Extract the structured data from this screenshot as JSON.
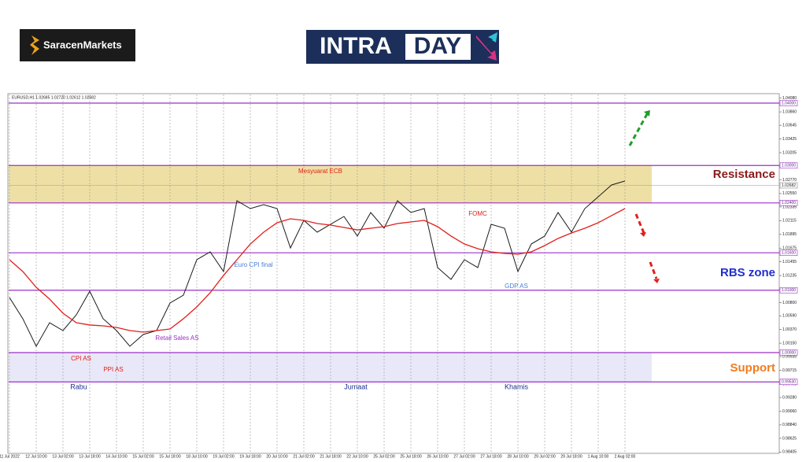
{
  "brand": "SaracenMarkets",
  "banner": {
    "left": "INTRA",
    "right": "DAY"
  },
  "chart_data": {
    "type": "line",
    "header": "EURUSD,H1  1.02685 1.02720 1.02612 1.02682",
    "categories": [
      "11 Jul 2022",
      null,
      "12 Jul 10:00",
      null,
      "13 Jul 02:00",
      null,
      "13 Jul 18:00",
      null,
      "14 Jul 10:00",
      null,
      "15 Jul 02:00",
      null,
      "15 Jul 18:00",
      null,
      "18 Jul 10:00",
      null,
      "19 Jul 02:00",
      null,
      "19 Jul 18:00",
      null,
      "20 Jul 10:00",
      null,
      "21 Jul 02:00",
      null,
      "21 Jul 18:00",
      null,
      "22 Jul 10:00",
      null,
      "25 Jul 02:00",
      null,
      "25 Jul 18:00",
      null,
      "26 Jul 10:00",
      null,
      "27 Jul 02:00",
      null,
      "27 Jul 18:00",
      null,
      "28 Jul 10:00",
      null,
      "29 Jul 02:00",
      null,
      "29 Jul 18:00",
      null,
      "1 Aug 10:00",
      null,
      "2 Aug 02:00"
    ],
    "series": [
      {
        "name": "EURUSD",
        "color": "#1a1a1a",
        "values": [
          1.00883,
          1.00543,
          1.00101,
          1.00479,
          1.00353,
          1.00606,
          1.00984,
          1.00543,
          1.00353,
          1.00101,
          1.0029,
          1.00353,
          1.00795,
          1.00921,
          1.01489,
          1.01615,
          1.013,
          1.02435,
          1.02309,
          1.02372,
          1.02309,
          1.01678,
          1.0212,
          1.01931,
          1.02057,
          1.02183,
          1.01868,
          1.02246,
          1.01994,
          1.02435,
          1.02246,
          1.02309,
          1.01363,
          1.01174,
          1.01489,
          1.01363,
          1.02057,
          1.01994,
          1.013,
          1.01741,
          1.01868,
          1.02246,
          1.01931,
          1.02309,
          1.02498,
          1.02688,
          1.02751
        ]
      },
      {
        "name": "MA",
        "color": "#e0201b",
        "values": [
          1.01489,
          1.013,
          1.01047,
          1.00858,
          1.00631,
          1.00479,
          1.00442,
          1.00429,
          1.00404,
          1.00353,
          1.00328,
          1.00353,
          1.00378,
          1.00543,
          1.00732,
          1.00959,
          1.01237,
          1.01489,
          1.01741,
          1.01931,
          1.02082,
          1.02145,
          1.0212,
          1.02069,
          1.02044,
          1.02006,
          1.01968,
          1.01994,
          1.02019,
          1.02069,
          1.02095,
          1.0212,
          1.02019,
          1.01868,
          1.01741,
          1.01666,
          1.01615,
          1.0159,
          1.01577,
          1.01615,
          1.01716,
          1.0183,
          1.01918,
          1.01994,
          1.02082,
          1.02196,
          1.02309
        ]
      }
    ],
    "ylim": [
      0.98397,
      1.04139
    ],
    "yticks": [
      {
        "value": 1.0408,
        "label": "1.04080"
      },
      {
        "value": 1.0386,
        "label": "1.03860"
      },
      {
        "value": 1.03645,
        "label": "1.03645"
      },
      {
        "value": 1.03425,
        "label": "1.03425"
      },
      {
        "value": 1.03205,
        "label": "1.03205"
      },
      {
        "value": 1.0299,
        "label": "1.02990"
      },
      {
        "value": 1.0277,
        "label": "1.02770"
      },
      {
        "value": 1.0255,
        "label": "1.02550"
      },
      {
        "value": 1.02335,
        "label": "1.02335"
      },
      {
        "value": 1.02115,
        "label": "1.02115"
      },
      {
        "value": 1.01895,
        "label": "1.01895"
      },
      {
        "value": 1.01675,
        "label": "1.01675"
      },
      {
        "value": 1.01455,
        "label": "1.01455"
      },
      {
        "value": 1.01235,
        "label": "1.01235"
      },
      1.01015,
      {
        "value": 1.008,
        "label": "1.00800"
      },
      {
        "value": 1.0059,
        "label": "1.00590"
      },
      {
        "value": 1.0037,
        "label": "1.00370"
      },
      {
        "value": 1.0015,
        "label": "1.00150"
      },
      0.99935,
      0.99715,
      0.99495,
      {
        "value": 0.9928,
        "label": "0.99280"
      },
      {
        "value": 0.9906,
        "label": "0.99060"
      },
      {
        "value": 0.9884,
        "label": "0.98840"
      },
      0.98625,
      0.98405
    ],
    "levels": [
      {
        "value": 1.04,
        "label": "1.04000"
      },
      {
        "value": 1.03,
        "label": "1.03000"
      },
      {
        "value": 1.024,
        "label": "1.02400"
      },
      {
        "value": 1.016,
        "label": "1.01600"
      },
      {
        "value": 1.01,
        "label": "1.01000"
      },
      {
        "value": 1.0,
        "label": "1.00000"
      },
      {
        "value": 0.9953,
        "label": "0.99530"
      }
    ],
    "current_price": {
      "value": 1.02682,
      "label": "1.02682"
    },
    "annotations": [
      "Mesyuarat ECB",
      "FOMC",
      "Euro CPI final",
      "GDP AS",
      "Retail Sales AS",
      "CPI AS",
      "PPI AS",
      "Rabu",
      "Jumaat",
      "Khamis"
    ],
    "zone_labels": [
      "Resistance",
      "RBS zone",
      "Support"
    ]
  }
}
